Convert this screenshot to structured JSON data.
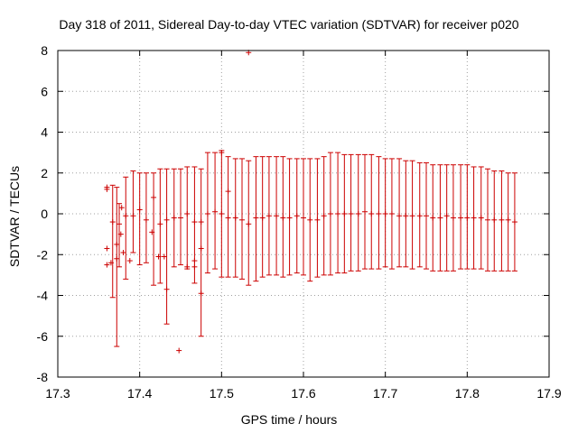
{
  "chart_data": {
    "type": "scatter",
    "title": "Day 318 of 2011, Sidereal Day-to-day VTEC variation (SDTVAR) for receiver p020",
    "xlabel": "GPS time / hours",
    "ylabel": "SDTVAR / TECUs",
    "xlim": [
      17.3,
      17.9
    ],
    "ylim": [
      -8,
      8
    ],
    "xticks": [
      "17.3",
      "17.4",
      "17.5",
      "17.6",
      "17.7",
      "17.8",
      "17.9"
    ],
    "yticks": [
      "-8",
      "-6",
      "-4",
      "-2",
      "0",
      "2",
      "4",
      "6",
      "8"
    ],
    "grid": true,
    "series_color": "#cc0000",
    "errorbars": [
      {
        "x": 17.367,
        "y": -0.4,
        "low": -4.1,
        "high": 1.4
      },
      {
        "x": 17.372,
        "y": -1.5,
        "low": -6.5,
        "high": 1.3
      },
      {
        "x": 17.375,
        "y": -0.5,
        "low": -2.6,
        "high": 0.5
      },
      {
        "x": 17.383,
        "y": -0.1,
        "low": -3.2,
        "high": 1.8
      },
      {
        "x": 17.392,
        "y": -0.1,
        "low": -1.9,
        "high": 2.1
      },
      {
        "x": 17.4,
        "y": 0.2,
        "low": -2.5,
        "high": 2.0
      },
      {
        "x": 17.408,
        "y": -0.3,
        "low": -2.4,
        "high": 2.0
      },
      {
        "x": 17.417,
        "y": 0.8,
        "low": -3.5,
        "high": 2.0
      },
      {
        "x": 17.425,
        "y": -0.5,
        "low": -3.4,
        "high": 2.2
      },
      {
        "x": 17.433,
        "y": -0.3,
        "low": -5.4,
        "high": 2.2
      },
      {
        "x": 17.442,
        "y": -0.2,
        "low": -2.6,
        "high": 2.2
      },
      {
        "x": 17.45,
        "y": -0.2,
        "low": -2.5,
        "high": 2.2
      },
      {
        "x": 17.458,
        "y": 0.0,
        "low": -2.7,
        "high": 2.3
      },
      {
        "x": 17.467,
        "y": -0.4,
        "low": -3.4,
        "high": 2.3
      },
      {
        "x": 17.475,
        "y": -0.4,
        "low": -6.0,
        "high": 2.2
      },
      {
        "x": 17.483,
        "y": 0.0,
        "low": -2.9,
        "high": 3.0
      },
      {
        "x": 17.492,
        "y": 0.1,
        "low": -2.7,
        "high": 3.0
      },
      {
        "x": 17.5,
        "y": 0.0,
        "low": -3.1,
        "high": 3.1
      },
      {
        "x": 17.508,
        "y": -0.2,
        "low": -3.1,
        "high": 2.8
      },
      {
        "x": 17.517,
        "y": -0.2,
        "low": -3.1,
        "high": 2.7
      },
      {
        "x": 17.525,
        "y": -0.3,
        "low": -3.2,
        "high": 2.7
      },
      {
        "x": 17.533,
        "y": -0.5,
        "low": -3.5,
        "high": 2.6
      },
      {
        "x": 17.542,
        "y": -0.2,
        "low": -3.3,
        "high": 2.8
      },
      {
        "x": 17.55,
        "y": -0.2,
        "low": -3.1,
        "high": 2.8
      },
      {
        "x": 17.558,
        "y": -0.1,
        "low": -3.0,
        "high": 2.8
      },
      {
        "x": 17.567,
        "y": -0.1,
        "low": -3.0,
        "high": 2.8
      },
      {
        "x": 17.575,
        "y": -0.2,
        "low": -3.1,
        "high": 2.8
      },
      {
        "x": 17.583,
        "y": -0.2,
        "low": -3.0,
        "high": 2.7
      },
      {
        "x": 17.592,
        "y": -0.1,
        "low": -2.9,
        "high": 2.7
      },
      {
        "x": 17.6,
        "y": -0.2,
        "low": -3.0,
        "high": 2.7
      },
      {
        "x": 17.608,
        "y": -0.3,
        "low": -3.3,
        "high": 2.7
      },
      {
        "x": 17.617,
        "y": -0.3,
        "low": -3.1,
        "high": 2.7
      },
      {
        "x": 17.625,
        "y": -0.1,
        "low": -3.0,
        "high": 2.8
      },
      {
        "x": 17.633,
        "y": 0.0,
        "low": -3.0,
        "high": 3.0
      },
      {
        "x": 17.642,
        "y": 0.0,
        "low": -2.9,
        "high": 3.0
      },
      {
        "x": 17.65,
        "y": 0.0,
        "low": -2.9,
        "high": 2.9
      },
      {
        "x": 17.658,
        "y": 0.0,
        "low": -2.8,
        "high": 2.9
      },
      {
        "x": 17.667,
        "y": 0.0,
        "low": -2.8,
        "high": 2.9
      },
      {
        "x": 17.675,
        "y": 0.1,
        "low": -2.7,
        "high": 2.9
      },
      {
        "x": 17.683,
        "y": 0.0,
        "low": -2.7,
        "high": 2.9
      },
      {
        "x": 17.692,
        "y": 0.0,
        "low": -2.7,
        "high": 2.8
      },
      {
        "x": 17.7,
        "y": 0.0,
        "low": -2.6,
        "high": 2.7
      },
      {
        "x": 17.708,
        "y": 0.0,
        "low": -2.7,
        "high": 2.7
      },
      {
        "x": 17.717,
        "y": -0.1,
        "low": -2.6,
        "high": 2.7
      },
      {
        "x": 17.725,
        "y": -0.1,
        "low": -2.6,
        "high": 2.6
      },
      {
        "x": 17.733,
        "y": -0.1,
        "low": -2.7,
        "high": 2.6
      },
      {
        "x": 17.742,
        "y": -0.1,
        "low": -2.6,
        "high": 2.5
      },
      {
        "x": 17.75,
        "y": -0.1,
        "low": -2.7,
        "high": 2.5
      },
      {
        "x": 17.758,
        "y": -0.2,
        "low": -2.8,
        "high": 2.4
      },
      {
        "x": 17.767,
        "y": -0.2,
        "low": -2.8,
        "high": 2.4
      },
      {
        "x": 17.775,
        "y": -0.1,
        "low": -2.8,
        "high": 2.4
      },
      {
        "x": 17.783,
        "y": -0.2,
        "low": -2.8,
        "high": 2.4
      },
      {
        "x": 17.792,
        "y": -0.2,
        "low": -2.7,
        "high": 2.4
      },
      {
        "x": 17.8,
        "y": -0.2,
        "low": -2.7,
        "high": 2.4
      },
      {
        "x": 17.808,
        "y": -0.2,
        "low": -2.7,
        "high": 2.3
      },
      {
        "x": 17.817,
        "y": -0.2,
        "low": -2.7,
        "high": 2.3
      },
      {
        "x": 17.825,
        "y": -0.3,
        "low": -2.8,
        "high": 2.2
      },
      {
        "x": 17.833,
        "y": -0.3,
        "low": -2.8,
        "high": 2.1
      },
      {
        "x": 17.842,
        "y": -0.3,
        "low": -2.8,
        "high": 2.1
      },
      {
        "x": 17.85,
        "y": -0.3,
        "low": -2.8,
        "high": 2.0
      },
      {
        "x": 17.858,
        "y": -0.4,
        "low": -2.8,
        "high": 2.0
      }
    ],
    "points": [
      {
        "x": 17.36,
        "y": 1.3
      },
      {
        "x": 17.36,
        "y": 1.2
      },
      {
        "x": 17.36,
        "y": -1.7
      },
      {
        "x": 17.36,
        "y": -2.5
      },
      {
        "x": 17.365,
        "y": -2.4
      },
      {
        "x": 17.372,
        "y": -2.2
      },
      {
        "x": 17.377,
        "y": -1.0
      },
      {
        "x": 17.378,
        "y": 0.3
      },
      {
        "x": 17.38,
        "y": -1.9
      },
      {
        "x": 17.388,
        "y": -2.3
      },
      {
        "x": 17.415,
        "y": -0.9
      },
      {
        "x": 17.423,
        "y": -2.1
      },
      {
        "x": 17.43,
        "y": -2.1
      },
      {
        "x": 17.433,
        "y": -3.7
      },
      {
        "x": 17.448,
        "y": -6.7
      },
      {
        "x": 17.458,
        "y": -2.6
      },
      {
        "x": 17.467,
        "y": -2.6
      },
      {
        "x": 17.467,
        "y": -2.3
      },
      {
        "x": 17.475,
        "y": -3.9
      },
      {
        "x": 17.475,
        "y": -1.7
      },
      {
        "x": 17.5,
        "y": 3.0
      },
      {
        "x": 17.508,
        "y": 1.1
      },
      {
        "x": 17.533,
        "y": 7.9
      }
    ]
  }
}
